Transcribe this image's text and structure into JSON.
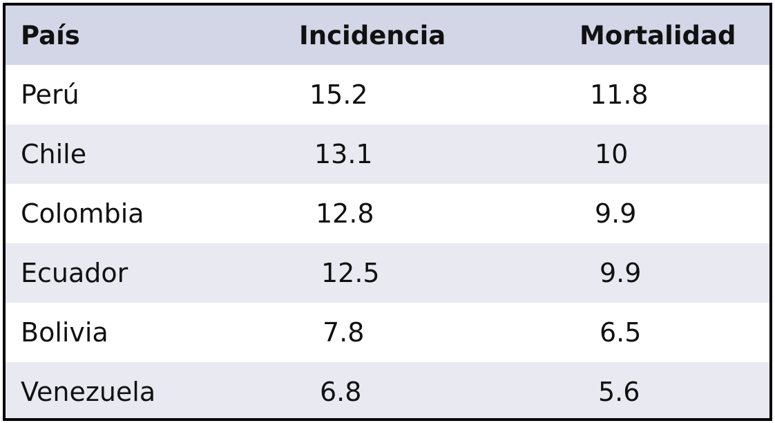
{
  "chart_data": {
    "type": "table",
    "columns": [
      "País",
      "Incidencia",
      "Mortalidad"
    ],
    "rows": [
      [
        "Perú",
        "15.2",
        "11.8"
      ],
      [
        "Chile",
        "13.1",
        "10"
      ],
      [
        "Colombia",
        "12.8",
        "9.9"
      ],
      [
        "Ecuador",
        "12.5",
        "9.9"
      ],
      [
        "Bolivia",
        "7.8",
        "6.5"
      ],
      [
        "Venezuela",
        "6.8",
        "5.6"
      ]
    ]
  },
  "colors": {
    "header_bg": "#d3d6e6",
    "row_light": "#ffffff",
    "row_shade": "#e8e9f1",
    "border": "#000000"
  }
}
